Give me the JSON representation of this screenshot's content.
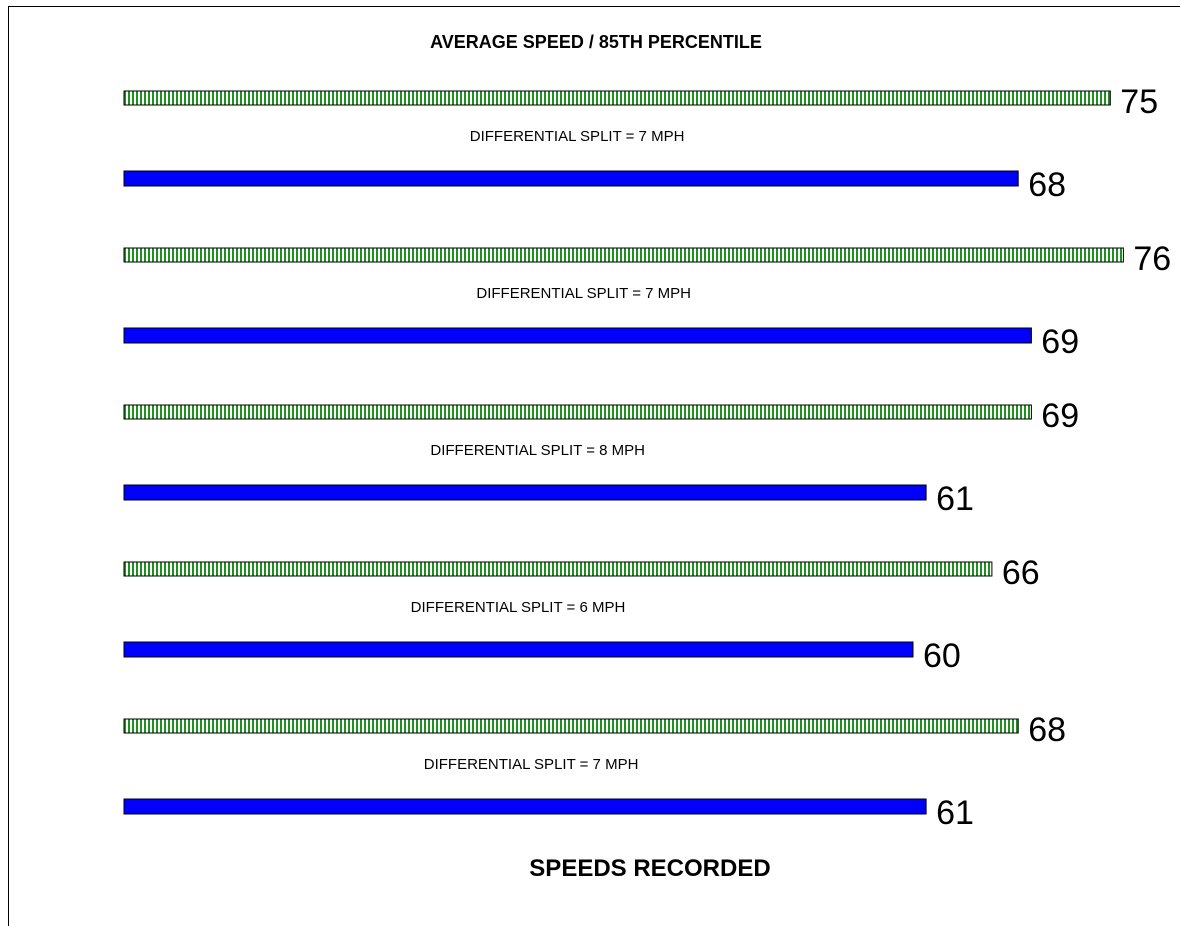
{
  "chart_data": {
    "type": "bar",
    "orientation": "horizontal",
    "title": "AVERAGE SPEED / 85TH PERCENTILE",
    "xlabel": "SPEEDS RECORDED",
    "ylabel": "",
    "grid": false,
    "legend": "none",
    "units": "MPH",
    "colors": {
      "percentile_85": "#1f8f1f",
      "average": "#0000ff",
      "outline": "#000000"
    },
    "groups": [
      {
        "percentile_85": 75,
        "average": 68,
        "split_label": "DIFFERENTIAL SPLIT = 7 MPH"
      },
      {
        "percentile_85": 76,
        "average": 69,
        "split_label": "DIFFERENTIAL SPLIT = 7 MPH"
      },
      {
        "percentile_85": 69,
        "average": 61,
        "split_label": "DIFFERENTIAL SPLIT = 8 MPH"
      },
      {
        "percentile_85": 66,
        "average": 60,
        "split_label": "DIFFERENTIAL SPLIT = 6 MPH"
      },
      {
        "percentile_85": 68,
        "average": 61,
        "split_label": "DIFFERENTIAL SPLIT = 7 MPH"
      }
    ]
  }
}
